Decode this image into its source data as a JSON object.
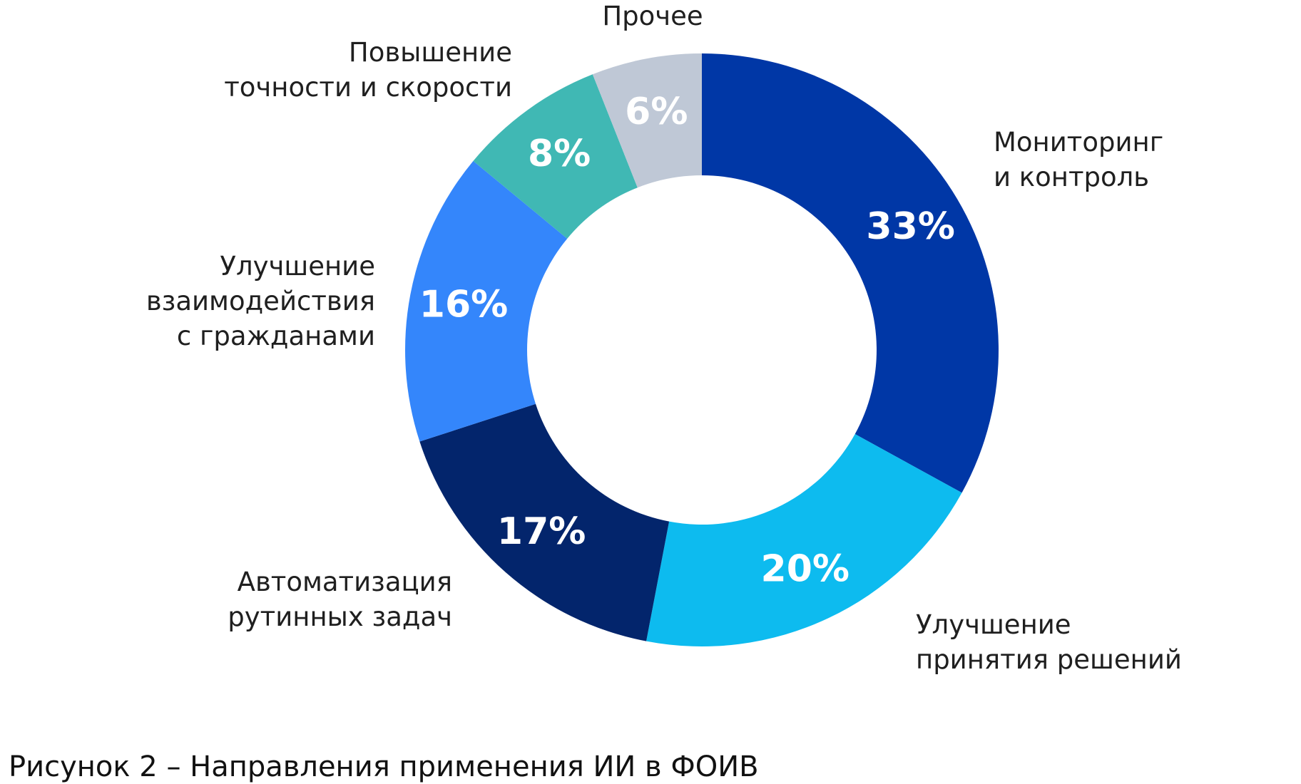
{
  "caption": "Рисунок 2 – Направления применения ИИ в ФОИВ",
  "chart_data": {
    "type": "pie",
    "donut": true,
    "unit": "%",
    "slices": [
      {
        "label_lines": [
          "Мониторинг",
          "и контроль"
        ],
        "value": 33,
        "value_label": "33%",
        "color": "#0037a6"
      },
      {
        "label_lines": [
          "Улучшение",
          "принятия решений"
        ],
        "value": 20,
        "value_label": "20%",
        "color": "#0dbbef"
      },
      {
        "label_lines": [
          "Автоматизация",
          "рутинных задач"
        ],
        "value": 17,
        "value_label": "17%",
        "color": "#03256c"
      },
      {
        "label_lines": [
          "Улучшение",
          "взаимодействия",
          "с гражданами"
        ],
        "value": 16,
        "value_label": "16%",
        "color": "#3486fb"
      },
      {
        "label_lines": [
          "Повышение",
          "точности и скорости"
        ],
        "value": 8,
        "value_label": "8%",
        "color": "#40b8b4"
      },
      {
        "label_lines": [
          "Прочее"
        ],
        "value": 6,
        "value_label": "6%",
        "color": "#bfc8d6"
      }
    ]
  }
}
